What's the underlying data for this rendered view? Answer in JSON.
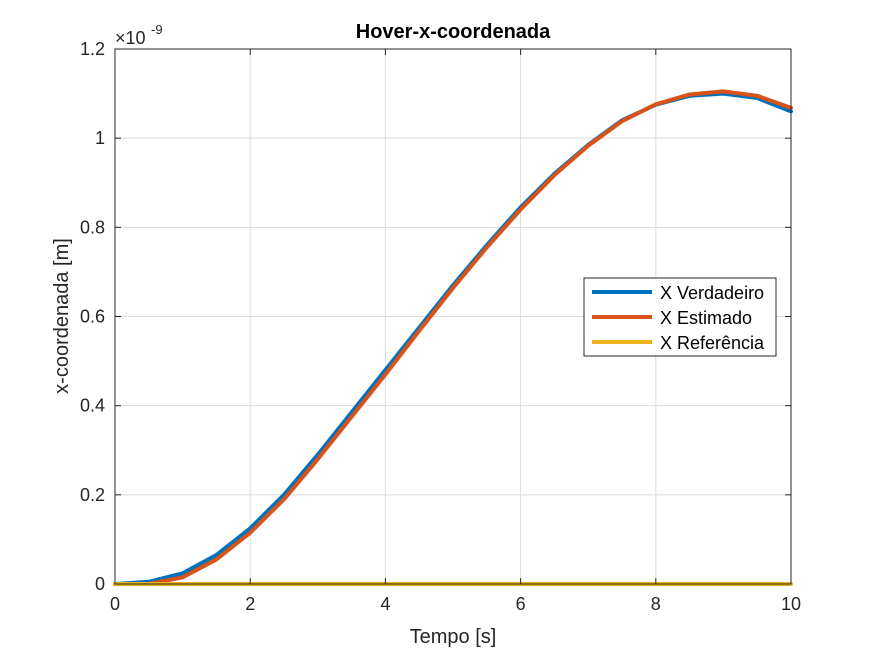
{
  "chart_data": {
    "type": "line",
    "title": "Hover-x-coordenada",
    "xlabel": "Tempo [s]",
    "ylabel": "x-coordenada [m]",
    "y_exponent_label": "×10",
    "y_exponent": "-9",
    "xlim": [
      0,
      10
    ],
    "ylim": [
      0,
      1.2
    ],
    "grid": true,
    "legend_position": "east",
    "x_ticks": [
      "0",
      "2",
      "4",
      "6",
      "8",
      "10"
    ],
    "y_ticks": [
      "0",
      "0.2",
      "0.4",
      "0.6",
      "0.8",
      "1",
      "1.2"
    ],
    "x": [
      0,
      0.5,
      1,
      1.5,
      2,
      2.5,
      3,
      3.5,
      4,
      4.5,
      5,
      5.5,
      6,
      6.5,
      7,
      7.5,
      8,
      8.5,
      9,
      9.5,
      10
    ],
    "series": [
      {
        "name": "X Verdadeiro",
        "color": "#0072BD",
        "values": [
          0,
          0.005,
          0.024,
          0.065,
          0.125,
          0.2,
          0.29,
          0.385,
          0.48,
          0.575,
          0.67,
          0.76,
          0.845,
          0.92,
          0.985,
          1.04,
          1.075,
          1.095,
          1.1,
          1.09,
          1.06
        ]
      },
      {
        "name": "X Estimado",
        "color": "#D95319",
        "values": [
          0,
          0.0,
          0.015,
          0.055,
          0.115,
          0.19,
          0.28,
          0.375,
          0.47,
          0.568,
          0.664,
          0.755,
          0.84,
          0.917,
          0.983,
          1.038,
          1.076,
          1.098,
          1.105,
          1.095,
          1.068
        ]
      },
      {
        "name": "X Referência",
        "color": "#EDB120",
        "values": [
          0,
          0,
          0,
          0,
          0,
          0,
          0,
          0,
          0,
          0,
          0,
          0,
          0,
          0,
          0,
          0,
          0,
          0,
          0,
          0,
          0
        ]
      }
    ]
  }
}
